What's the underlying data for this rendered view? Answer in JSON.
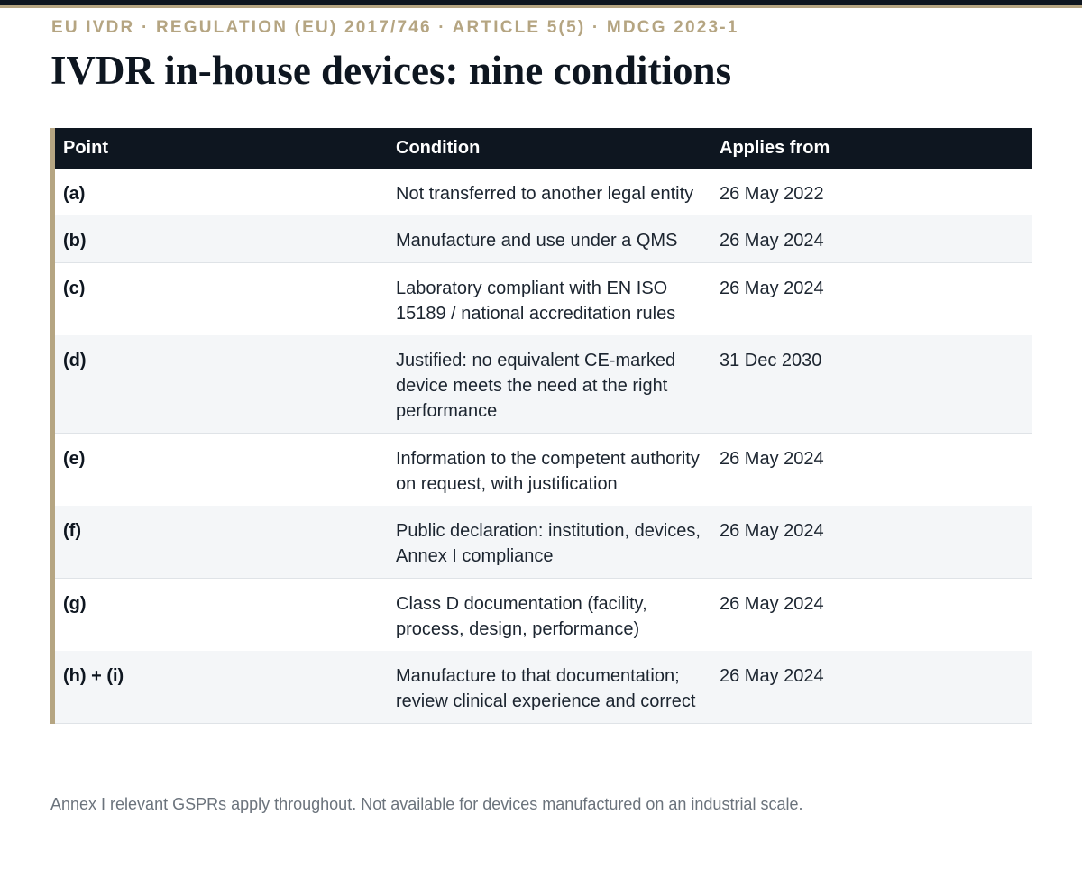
{
  "header": {
    "eyebrow": "EU IVDR · REGULATION (EU) 2017/746 · ARTICLE 5(5) · MDCG 2023-1",
    "title": "IVDR in-house devices: nine conditions"
  },
  "table": {
    "columns": [
      "Point",
      "Condition",
      "Applies from"
    ],
    "rows": [
      {
        "point": "(a)",
        "condition": "Not transferred to another legal entity",
        "applies_from": "26 May 2022"
      },
      {
        "point": "(b)",
        "condition": "Manufacture and use under a QMS",
        "applies_from": "26 May 2024"
      },
      {
        "point": "(c)",
        "condition": "Laboratory compliant with EN ISO 15189 / national accreditation rules",
        "applies_from": "26 May 2024"
      },
      {
        "point": "(d)",
        "condition": "Justified: no equivalent CE-marked device meets the need at the right performance",
        "applies_from": "31 Dec 2030"
      },
      {
        "point": "(e)",
        "condition": "Information to the competent authority on request, with justification",
        "applies_from": "26 May 2024"
      },
      {
        "point": "(f)",
        "condition": "Public declaration: institution, devices, Annex I compliance",
        "applies_from": "26 May 2024"
      },
      {
        "point": "(g)",
        "condition": "Class D documentation (facility, process, design, performance)",
        "applies_from": "26 May 2024"
      },
      {
        "point": "(h) + (i)",
        "condition": "Manufacture to that documentation; review clinical experience and correct",
        "applies_from": "26 May 2024"
      }
    ]
  },
  "footnote": "Annex I relevant GSPRs apply throughout. Not available for devices manufactured on an industrial scale.",
  "colors": {
    "accent": "#b5a582",
    "header_bg": "#0e1620",
    "row_alt": "#f4f6f8"
  }
}
